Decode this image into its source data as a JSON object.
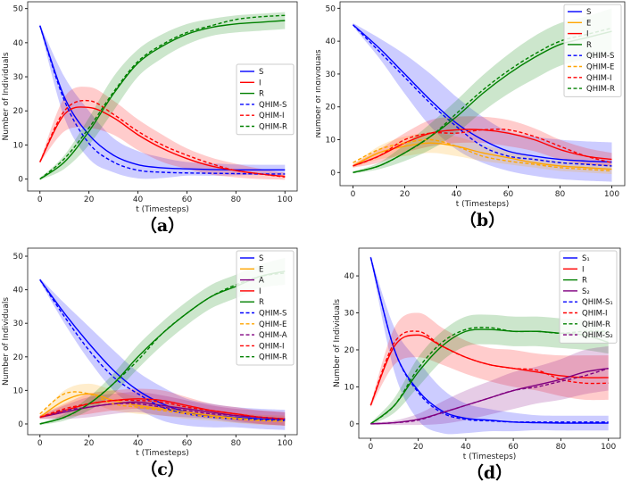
{
  "colors": {
    "S": "#0000ff",
    "E": "#ffa500",
    "A": "#800080",
    "I": "#ff0000",
    "R": "#008000",
    "S2": "#800080"
  },
  "chart_data": [
    {
      "type": "line",
      "panel_label": "（a）",
      "xlabel": "t (Timesteps)",
      "ylabel": "Number of Individuals",
      "xlim": [
        -5,
        105
      ],
      "ylim": [
        -3.5,
        52
      ],
      "xticks": [
        0,
        20,
        40,
        60,
        80,
        100
      ],
      "yticks": [
        0,
        10,
        20,
        30,
        40,
        50
      ],
      "legend": "center-right",
      "x": [
        0,
        10,
        20,
        30,
        40,
        50,
        60,
        70,
        80,
        90,
        100
      ],
      "series": [
        {
          "name": "S",
          "color": "S",
          "dash": false,
          "values": [
            45,
            24,
            13,
            7,
            4.2,
            3.3,
            3,
            2.8,
            2.7,
            2.7,
            2.7
          ],
          "spread": [
            0.5,
            6,
            7,
            5,
            4,
            3,
            2,
            1.8,
            1.6,
            1.5,
            1.5
          ]
        },
        {
          "name": "I",
          "color": "I",
          "dash": false,
          "values": [
            5,
            19,
            21,
            18,
            13,
            9,
            6,
            3.8,
            2.5,
            1.5,
            0.8
          ],
          "spread": [
            0.3,
            5,
            6,
            5,
            4.5,
            4,
            3,
            2.5,
            2,
            1.5,
            1
          ]
        },
        {
          "name": "R",
          "color": "R",
          "dash": false,
          "values": [
            0,
            5,
            14,
            25,
            34,
            39,
            42.5,
            44.5,
            45.5,
            46,
            46.5
          ],
          "spread": [
            0.3,
            2,
            4,
            5,
            4,
            3.5,
            3,
            2.5,
            2.5,
            2.5,
            2.5
          ]
        },
        {
          "name": "QHIM-S",
          "color": "S",
          "dash": true,
          "values": [
            45,
            23,
            10.5,
            5,
            2.6,
            2,
            1.8,
            1.7,
            1.6,
            1.5,
            1.5
          ]
        },
        {
          "name": "QHIM-I",
          "color": "I",
          "dash": true,
          "values": [
            5,
            20,
            23,
            19,
            14,
            10,
            7,
            4.5,
            2.5,
            1.5,
            0.6
          ]
        },
        {
          "name": "QHIM-R",
          "color": "R",
          "dash": true,
          "values": [
            0,
            6,
            15,
            25.5,
            34.5,
            39.5,
            43,
            45,
            46.8,
            47.6,
            48
          ]
        }
      ]
    },
    {
      "type": "line",
      "panel_label": "（b）",
      "xlabel": "t (Timesteps)",
      "ylabel": "Number of Individuals",
      "xlim": [
        -5,
        105
      ],
      "ylim": [
        -4,
        52
      ],
      "xticks": [
        0,
        20,
        40,
        60,
        80,
        100
      ],
      "yticks": [
        0,
        10,
        20,
        30,
        40,
        50
      ],
      "legend": "upper-right",
      "x": [
        0,
        10,
        20,
        30,
        40,
        50,
        60,
        70,
        80,
        90,
        100
      ],
      "series": [
        {
          "name": "S",
          "color": "S",
          "dash": false,
          "values": [
            45,
            38,
            30,
            22,
            15,
            10,
            6.5,
            5,
            4,
            3.5,
            3.2
          ],
          "spread": [
            0.5,
            3,
            6,
            8,
            8,
            7,
            6,
            6,
            6,
            6,
            6
          ]
        },
        {
          "name": "E",
          "color": "E",
          "dash": false,
          "values": [
            2,
            6,
            8,
            9,
            8,
            6,
            4.5,
            3,
            2,
            1.5,
            1
          ],
          "spread": [
            0.5,
            2,
            3,
            3,
            3,
            2.5,
            2,
            1.5,
            1.5,
            1.5,
            1.5
          ]
        },
        {
          "name": "I",
          "color": "I",
          "dash": false,
          "values": [
            2,
            5,
            9,
            12,
            13,
            13,
            12,
            10,
            7,
            5,
            4
          ],
          "spread": [
            0.5,
            2,
            3,
            4,
            4,
            4,
            4,
            3.5,
            3,
            2.5,
            2
          ]
        },
        {
          "name": "R",
          "color": "R",
          "dash": false,
          "values": [
            0,
            2,
            6,
            11,
            17,
            24,
            30,
            35,
            39,
            41,
            43
          ],
          "spread": [
            0.3,
            1,
            2.5,
            4,
            5,
            5.5,
            6,
            6.5,
            6.5,
            6.5,
            7
          ]
        },
        {
          "name": "QHIM-S",
          "color": "S",
          "dash": true,
          "values": [
            45,
            37,
            29,
            21,
            14,
            8,
            5,
            4,
            3,
            2.5,
            2
          ]
        },
        {
          "name": "QHIM-E",
          "color": "E",
          "dash": true,
          "values": [
            3,
            7,
            9,
            10,
            8,
            5,
            3.5,
            2.5,
            1.5,
            1,
            0.5
          ]
        },
        {
          "name": "QHIM-I",
          "color": "I",
          "dash": true,
          "values": [
            2,
            5,
            10,
            12,
            12,
            13,
            13,
            11,
            8,
            5,
            3
          ]
        },
        {
          "name": "QHIM-R",
          "color": "R",
          "dash": true,
          "values": [
            0,
            2,
            6,
            11,
            18,
            25,
            31,
            36,
            40,
            42,
            44
          ]
        }
      ]
    },
    {
      "type": "line",
      "panel_label": "（c）",
      "xlabel": "t (Timesteps)",
      "ylabel": "Number of Individuals",
      "xlim": [
        -5,
        105
      ],
      "ylim": [
        -3.2,
        52.4
      ],
      "xticks": [
        0,
        20,
        40,
        60,
        80,
        100
      ],
      "yticks": [
        0,
        10,
        20,
        30,
        40,
        50
      ],
      "legend": "upper-right",
      "x": [
        0,
        10,
        20,
        30,
        40,
        50,
        60,
        70,
        80,
        90,
        100
      ],
      "series": [
        {
          "name": "S",
          "color": "S",
          "dash": false,
          "values": [
            43,
            33,
            24,
            16,
            10,
            6,
            3.5,
            2.5,
            2,
            1.5,
            1.2
          ],
          "spread": [
            0.5,
            3,
            5,
            6,
            5.5,
            5,
            4,
            3.5,
            3,
            3,
            3
          ]
        },
        {
          "name": "E",
          "color": "E",
          "dash": false,
          "values": [
            2,
            7,
            9,
            7,
            5.5,
            4.5,
            3.5,
            2.5,
            1.8,
            1.2,
            1
          ],
          "spread": [
            0.5,
            3,
            3,
            3,
            2.5,
            2,
            2,
            1.5,
            1.5,
            1.5,
            1.5
          ]
        },
        {
          "name": "A",
          "color": "A",
          "dash": false,
          "values": [
            2,
            3.5,
            5,
            6,
            6.5,
            5.5,
            4.5,
            3.5,
            2.5,
            2,
            1.5
          ],
          "spread": [
            0.5,
            2,
            3,
            3,
            3,
            3,
            2.5,
            2,
            2,
            2,
            2
          ]
        },
        {
          "name": "I",
          "color": "I",
          "dash": false,
          "values": [
            2,
            4,
            6,
            7,
            7.5,
            7,
            5.5,
            4,
            3,
            2,
            1.5
          ],
          "spread": [
            0.5,
            2,
            3,
            3,
            3,
            3,
            2.5,
            2,
            2,
            2,
            2
          ]
        },
        {
          "name": "R",
          "color": "R",
          "dash": false,
          "values": [
            0,
            2,
            6,
            12,
            20,
            27,
            33,
            38,
            41,
            44,
            45.5
          ],
          "spread": [
            0.3,
            1,
            2,
            3,
            3.5,
            3.5,
            3.5,
            3.5,
            3.5,
            3.5,
            4
          ]
        },
        {
          "name": "QHIM-S",
          "color": "S",
          "dash": true,
          "values": [
            43,
            32,
            22,
            14,
            9,
            5,
            3,
            2,
            1.5,
            1.2,
            1
          ]
        },
        {
          "name": "QHIM-E",
          "color": "E",
          "dash": true,
          "values": [
            3,
            9,
            9,
            6,
            5,
            4,
            3,
            2,
            1.5,
            1,
            0.8
          ]
        },
        {
          "name": "QHIM-A",
          "color": "A",
          "dash": true,
          "values": [
            2,
            4,
            5,
            6,
            6,
            5,
            4,
            3,
            2.5,
            2,
            1.5
          ]
        },
        {
          "name": "QHIM-I",
          "color": "I",
          "dash": true,
          "values": [
            2,
            4.5,
            6,
            7,
            7,
            6.5,
            5,
            4,
            3,
            2,
            1.5
          ]
        },
        {
          "name": "QHIM-R",
          "color": "R",
          "dash": true,
          "values": [
            0,
            2,
            6,
            12,
            19,
            27,
            33,
            38,
            41.5,
            44,
            45
          ]
        }
      ]
    },
    {
      "type": "line",
      "panel_label": "（d）",
      "xlabel": "t (Timesteps)",
      "ylabel": "Number of Individuals",
      "xlim": [
        -5,
        105
      ],
      "ylim": [
        -3.9,
        47.5
      ],
      "xticks": [
        0,
        20,
        40,
        60,
        80,
        100
      ],
      "yticks": [
        0,
        10,
        20,
        30,
        40
      ],
      "legend": "upper-right",
      "x": [
        0,
        10,
        20,
        30,
        40,
        50,
        60,
        70,
        80,
        90,
        100
      ],
      "series": [
        {
          "name": "S₁",
          "color": "S",
          "dash": false,
          "values": [
            45,
            20,
            9,
            3.5,
            1.5,
            1,
            0.5,
            0.3,
            0.2,
            0.2,
            0.2
          ],
          "spread": [
            0.5,
            6,
            8,
            6,
            4,
            3,
            2.5,
            2,
            2,
            2,
            2
          ]
        },
        {
          "name": "I",
          "color": "I",
          "dash": false,
          "values": [
            5,
            21,
            24,
            21,
            18,
            16,
            15,
            14,
            13,
            12.5,
            12.5
          ],
          "spread": [
            0.5,
            5,
            6,
            5,
            4.5,
            4.5,
            5,
            5,
            5.5,
            6,
            6
          ]
        },
        {
          "name": "R",
          "color": "R",
          "dash": false,
          "values": [
            0,
            5,
            14,
            21,
            25,
            25.5,
            25,
            25,
            24.5,
            24,
            22
          ],
          "spread": [
            0.3,
            2,
            4,
            4,
            4,
            4,
            4,
            4,
            4,
            4,
            3
          ]
        },
        {
          "name": "S₂",
          "color": "S2",
          "dash": false,
          "values": [
            0,
            0.3,
            1.2,
            3,
            5,
            7,
            9,
            10.5,
            12,
            14,
            15
          ],
          "spread": [
            0.3,
            0.6,
            1.5,
            3,
            4,
            4.5,
            5,
            5,
            5.5,
            6,
            6
          ]
        },
        {
          "name": "QHIM-S₁",
          "color": "S",
          "dash": true,
          "values": [
            45,
            20,
            8.5,
            3,
            1.2,
            0.8,
            0.5,
            0.5,
            0.5,
            0.5,
            0.5
          ]
        },
        {
          "name": "QHIM-I",
          "color": "I",
          "dash": true,
          "values": [
            5,
            22,
            25,
            21,
            18,
            16,
            15,
            14.5,
            12,
            11,
            11
          ]
        },
        {
          "name": "QHIM-R",
          "color": "R",
          "dash": true,
          "values": [
            0,
            5,
            15,
            22,
            25.5,
            26,
            25,
            25,
            24.5,
            25,
            25
          ]
        },
        {
          "name": "QHIM-S₂",
          "color": "S2",
          "dash": true,
          "values": [
            0,
            0.3,
            1,
            3,
            5,
            7,
            9,
            10,
            11.5,
            13,
            15
          ]
        }
      ]
    }
  ]
}
